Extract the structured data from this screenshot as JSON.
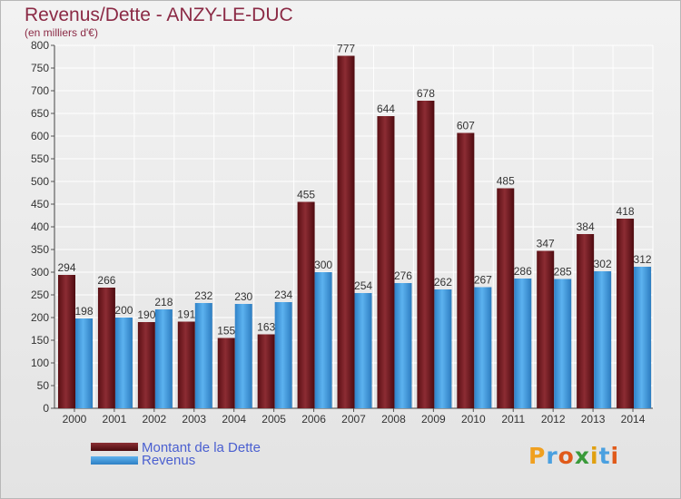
{
  "title": "Revenus/Dette - ANZY-LE-DUC",
  "subtitle": "(en milliers d'€)",
  "brand": {
    "text": "Proxiti",
    "letter_colors": [
      "#f0a020",
      "#4aa0e0",
      "#e05a1a",
      "#3a9a3a",
      "#e0a010",
      "#4aa0e0",
      "#e05a1a"
    ]
  },
  "colors": {
    "dette": "#7a1f26",
    "revenus": "#3f97dc",
    "title": "#8b2a45",
    "legend_text": "#4a5fd0"
  },
  "chart_data": {
    "type": "bar",
    "categories": [
      "2000",
      "2001",
      "2002",
      "2003",
      "2004",
      "2005",
      "2006",
      "2007",
      "2008",
      "2009",
      "2010",
      "2011",
      "2012",
      "2013",
      "2014"
    ],
    "series": [
      {
        "name": "Montant de la Dette",
        "values": [
          294,
          266,
          190,
          191,
          155,
          163,
          455,
          777,
          644,
          678,
          607,
          485,
          347,
          384,
          418
        ]
      },
      {
        "name": "Revenus",
        "values": [
          198,
          200,
          218,
          232,
          230,
          234,
          300,
          254,
          276,
          262,
          267,
          286,
          285,
          302,
          312
        ]
      }
    ],
    "ylim": [
      0,
      800
    ],
    "yticks": [
      0,
      50,
      100,
      150,
      200,
      250,
      300,
      350,
      400,
      450,
      500,
      550,
      600,
      650,
      700,
      750,
      800
    ],
    "grid": true,
    "legend_position": "bottom-left"
  }
}
